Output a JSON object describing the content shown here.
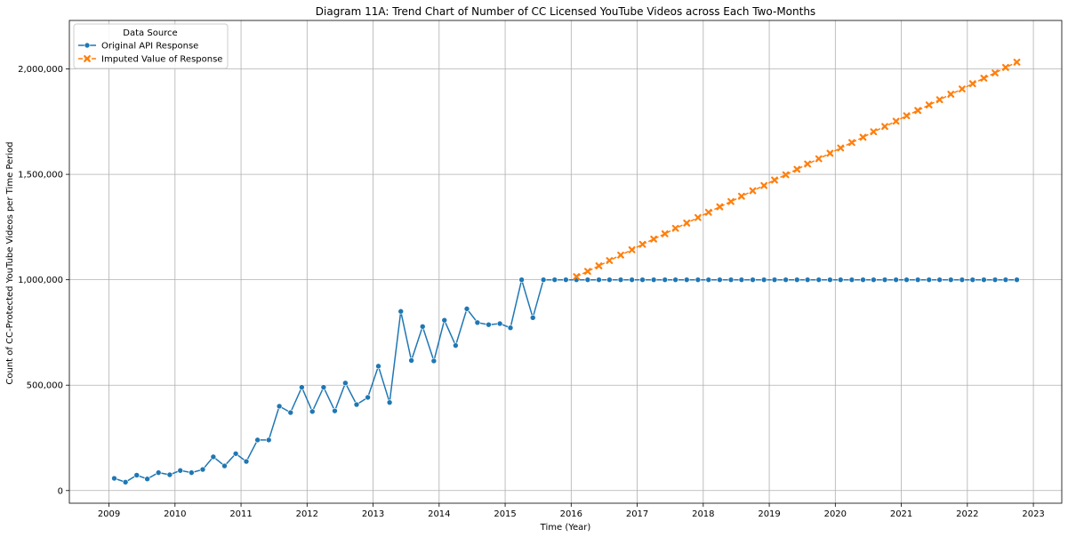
{
  "chart_data": {
    "type": "line",
    "title": "Diagram 11A: Trend Chart of Number of CC Licensed YouTube Videos across Each Two-Months",
    "xlabel": "Time (Year)",
    "ylabel": "Count of CC-Protected YouTube Videos per Time Period",
    "xlim": [
      2008.4,
      2023.43
    ],
    "ylim": [
      -60000,
      2230000
    ],
    "xticks": [
      2009,
      2010,
      2011,
      2012,
      2013,
      2014,
      2015,
      2016,
      2017,
      2018,
      2019,
      2020,
      2021,
      2022,
      2023
    ],
    "yticks": [
      0,
      500000,
      1000000,
      1500000,
      2000000
    ],
    "ytick_labels": [
      "0",
      "500,000",
      "1,000,000",
      "1,500,000",
      "2,000,000"
    ],
    "grid": true,
    "legend": {
      "title": "Data Source",
      "placement": "top-left"
    },
    "series": [
      {
        "name": "Original API Response",
        "color": "#1f77b4",
        "marker": "circle",
        "line_style": "solid",
        "x": [
          2009.08,
          2009.25,
          2009.42,
          2009.58,
          2009.75,
          2009.92,
          2010.08,
          2010.25,
          2010.42,
          2010.58,
          2010.75,
          2010.92,
          2011.08,
          2011.25,
          2011.42,
          2011.58,
          2011.75,
          2011.92,
          2012.08,
          2012.25,
          2012.42,
          2012.58,
          2012.75,
          2012.92,
          2013.08,
          2013.25,
          2013.42,
          2013.58,
          2013.75,
          2013.92,
          2014.08,
          2014.25,
          2014.42,
          2014.58,
          2014.75,
          2014.92,
          2015.08,
          2015.25,
          2015.42,
          2015.58,
          2015.75,
          2015.92,
          2016.08,
          2016.25,
          2016.42,
          2016.58,
          2016.75,
          2016.92,
          2017.08,
          2017.25,
          2017.42,
          2017.58,
          2017.75,
          2017.92,
          2018.08,
          2018.25,
          2018.42,
          2018.58,
          2018.75,
          2018.92,
          2019.08,
          2019.25,
          2019.42,
          2019.58,
          2019.75,
          2019.92,
          2020.08,
          2020.25,
          2020.42,
          2020.58,
          2020.75,
          2020.92,
          2021.08,
          2021.25,
          2021.42,
          2021.58,
          2021.75,
          2021.92,
          2022.08,
          2022.25,
          2022.42,
          2022.58,
          2022.75
        ],
        "y": [
          58000,
          40000,
          73000,
          55000,
          85000,
          75000,
          95000,
          85000,
          100000,
          160000,
          117000,
          175000,
          138000,
          240000,
          240000,
          400000,
          370000,
          490000,
          375000,
          490000,
          378000,
          510000,
          408000,
          442000,
          590000,
          418000,
          850000,
          617000,
          778000,
          615000,
          808000,
          688000,
          862000,
          797000,
          787000,
          792000,
          772000,
          1000000,
          820000,
          1000000,
          1000000,
          1000000,
          1000000,
          1000000,
          1000000,
          1000000,
          1000000,
          1000000,
          1000000,
          1000000,
          1000000,
          1000000,
          1000000,
          1000000,
          1000000,
          1000000,
          1000000,
          1000000,
          1000000,
          1000000,
          1000000,
          1000000,
          1000000,
          1000000,
          1000000,
          1000000,
          1000000,
          1000000,
          1000000,
          1000000,
          1000000,
          1000000,
          1000000,
          1000000,
          1000000,
          1000000,
          1000000,
          1000000,
          1000000,
          1000000,
          1000000,
          1000000,
          1000000
        ]
      },
      {
        "name": "Imputed Value of Response",
        "color": "#ff7f0e",
        "marker": "x",
        "line_style": "dashed",
        "x": [
          2016.08,
          2016.25,
          2016.42,
          2016.58,
          2016.75,
          2016.92,
          2017.08,
          2017.25,
          2017.42,
          2017.58,
          2017.75,
          2017.92,
          2018.08,
          2018.25,
          2018.42,
          2018.58,
          2018.75,
          2018.92,
          2019.08,
          2019.25,
          2019.42,
          2019.58,
          2019.75,
          2019.92,
          2020.08,
          2020.25,
          2020.42,
          2020.58,
          2020.75,
          2020.92,
          2021.08,
          2021.25,
          2021.42,
          2021.58,
          2021.75,
          2021.92,
          2022.08,
          2022.25,
          2022.42,
          2022.58,
          2022.75
        ],
        "y": [
          1015000,
          1040000,
          1066000,
          1091000,
          1117000,
          1142000,
          1168000,
          1193000,
          1218000,
          1244000,
          1269000,
          1295000,
          1320000,
          1346000,
          1371000,
          1396000,
          1422000,
          1447000,
          1473000,
          1498000,
          1524000,
          1549000,
          1574000,
          1600000,
          1625000,
          1651000,
          1676000,
          1702000,
          1727000,
          1752000,
          1778000,
          1803000,
          1829000,
          1854000,
          1880000,
          1905000,
          1930000,
          1956000,
          1981000,
          2007000,
          2032000
        ]
      }
    ]
  }
}
